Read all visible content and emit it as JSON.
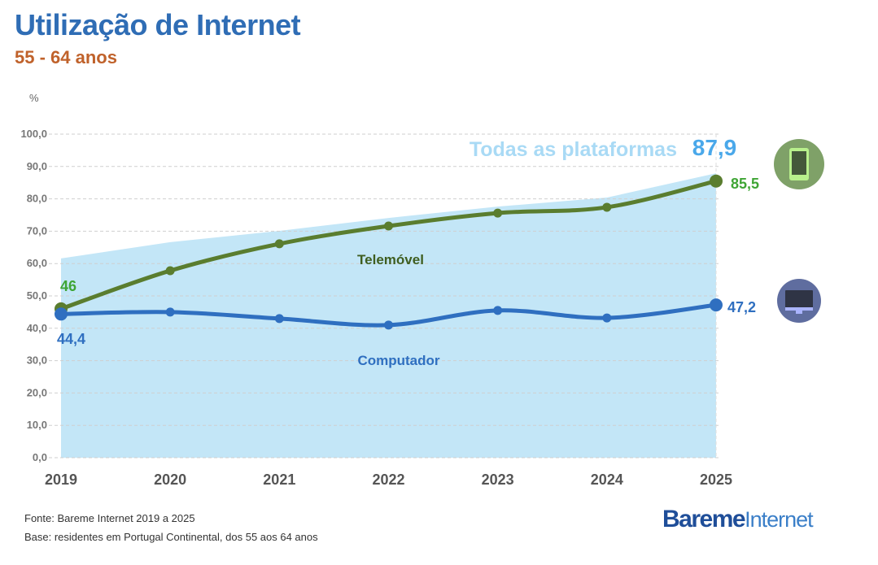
{
  "title": "Utilização de Internet",
  "subtitle": "55 - 64 anos",
  "footer": {
    "source": "Fonte: Bareme Internet 2019 a 2025",
    "base": "Base: residentes em Portugal Continental, dos 55 aos 64 anos"
  },
  "logo": {
    "bold": "Bareme",
    "light": "Internet"
  },
  "icons": {
    "phone": "smartphone-icon",
    "computer": "desktop-monitor-icon"
  },
  "chart_data": {
    "type": "line",
    "ylabel": "%",
    "ylim": [
      0,
      100
    ],
    "yticks": [
      "0,0",
      "10,0",
      "20,0",
      "30,0",
      "40,0",
      "50,0",
      "60,0",
      "70,0",
      "80,0",
      "90,0",
      "100,0"
    ],
    "categories": [
      "2019",
      "2020",
      "2021",
      "2022",
      "2023",
      "2024",
      "2025"
    ],
    "grid": "horizontal dashed",
    "series": [
      {
        "name": "Todas as plataformas",
        "kind": "area",
        "color": "#c3e6f7",
        "label_color": "#a9daf5",
        "values": [
          61.6,
          66.6,
          70.1,
          74.1,
          77.6,
          80.4,
          87.9
        ],
        "end_label": "87,9"
      },
      {
        "name": "Telemóvel",
        "kind": "line",
        "color": "#5a7d2f",
        "label_color": "#3fa535",
        "values": [
          46,
          57.8,
          66.1,
          71.6,
          75.6,
          77.4,
          85.5
        ],
        "start_label": "46",
        "end_label": "85,5"
      },
      {
        "name": "Computador",
        "kind": "line",
        "color": "#2f6fc0",
        "label_color": "#2f6fc0",
        "values": [
          44.4,
          45.0,
          43.0,
          41.0,
          45.5,
          43.2,
          47.2
        ],
        "start_label": "44,4",
        "end_label": "47,2"
      }
    ]
  }
}
